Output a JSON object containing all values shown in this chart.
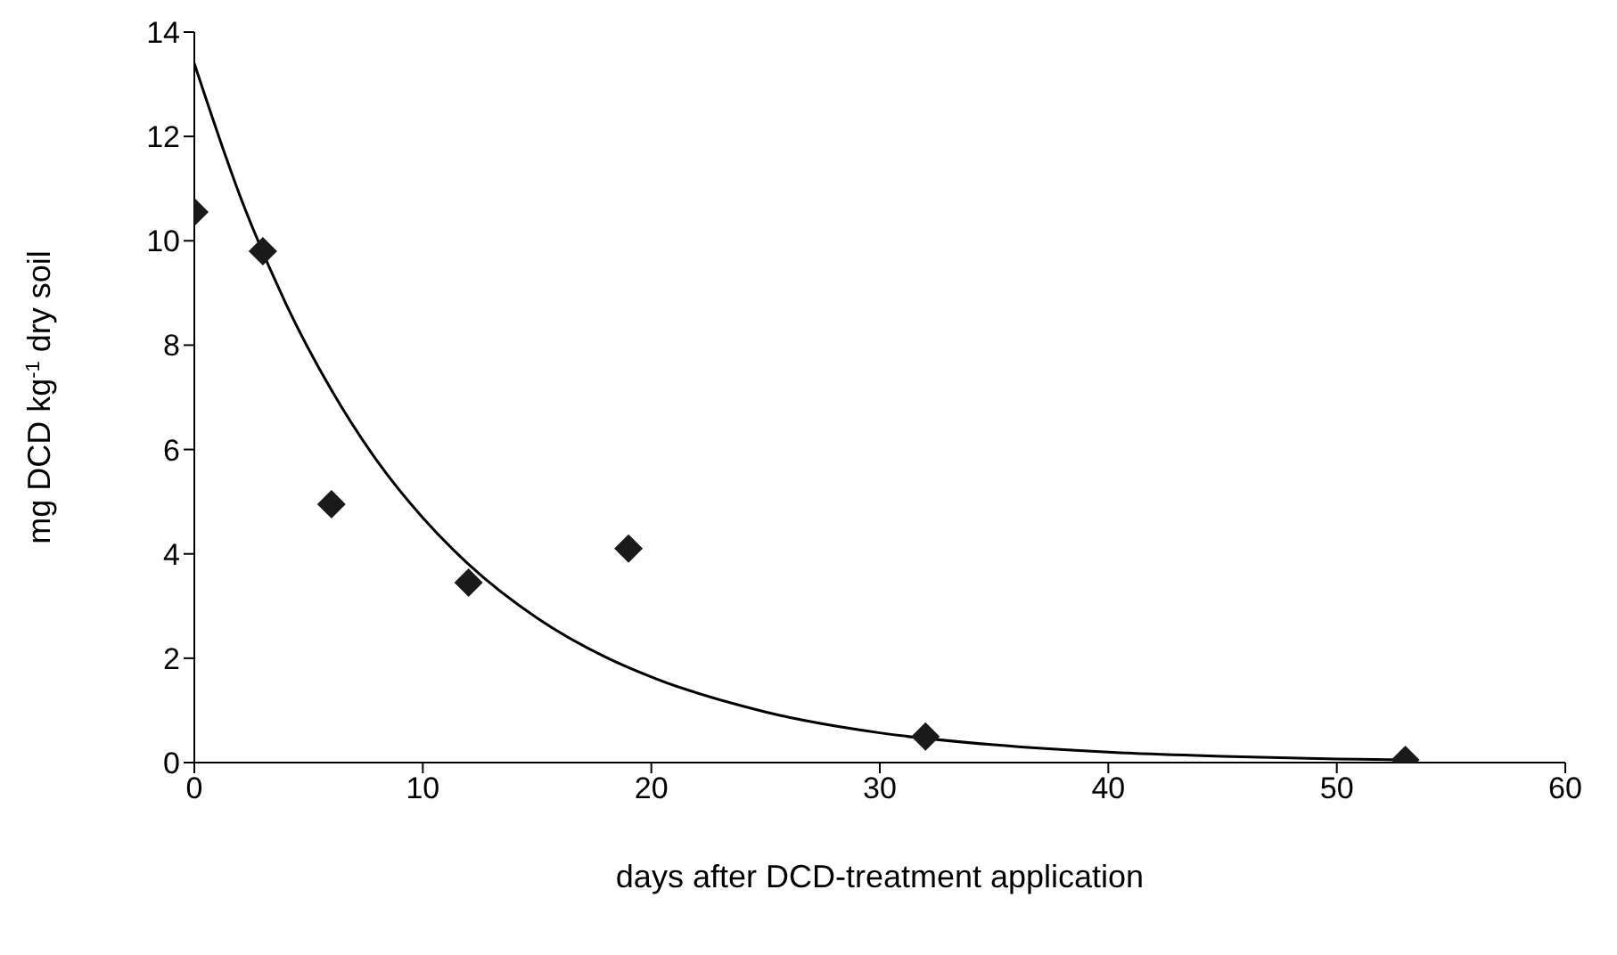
{
  "chart_data": {
    "type": "scatter",
    "xlabel": "days after DCD-treatment application",
    "ylabel": "mg DCD kg$^{-1}$ dry soil",
    "xlim": [
      0,
      60
    ],
    "xticks": [
      0,
      10,
      20,
      30,
      40,
      50,
      60
    ],
    "ylim": [
      0,
      14
    ],
    "yticks": [
      0,
      2,
      4,
      6,
      8,
      10,
      12,
      14
    ],
    "marker": "diamond",
    "series": [
      {
        "color": "#1a1a1a",
        "x": [
          0,
          3,
          6,
          12,
          19,
          32,
          53
        ],
        "values": [
          10.55,
          9.8,
          4.95,
          3.45,
          4.1,
          0.5,
          0.05
        ]
      },
      {
        "type": "line",
        "color": "#000000",
        "marker": "none",
        "x": [
          0,
          2,
          4,
          6,
          8,
          10,
          12,
          15,
          18,
          20,
          25,
          30,
          35,
          40,
          45,
          50,
          53
        ],
        "values": [
          13.4,
          10.86,
          8.8,
          7.14,
          5.78,
          4.69,
          3.8,
          2.77,
          2.02,
          1.64,
          0.97,
          0.57,
          0.34,
          0.2,
          0.12,
          0.07,
          0.05
        ]
      }
    ]
  }
}
